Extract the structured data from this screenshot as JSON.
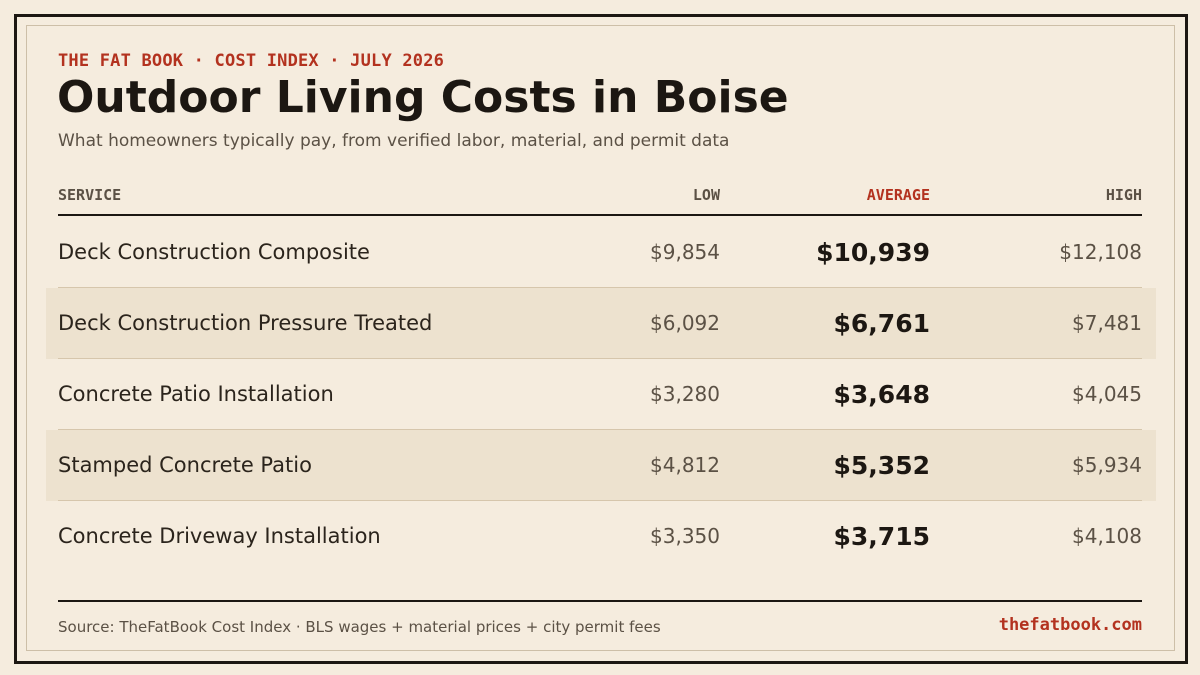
{
  "header": {
    "eyebrow": "THE FAT BOOK · COST INDEX · JULY 2026",
    "title": "Outdoor Living Costs in Boise",
    "subtitle": "What homeowners typically pay, from verified labor, material, and permit data"
  },
  "table": {
    "columns": {
      "service": "SERVICE",
      "low": "LOW",
      "average": "AVERAGE",
      "high": "HIGH"
    },
    "rows": [
      {
        "service": "Deck Construction Composite",
        "low": "$9,854",
        "average": "$10,939",
        "high": "$12,108"
      },
      {
        "service": "Deck Construction Pressure Treated",
        "low": "$6,092",
        "average": "$6,761",
        "high": "$7,481"
      },
      {
        "service": "Concrete Patio Installation",
        "low": "$3,280",
        "average": "$3,648",
        "high": "$4,045"
      },
      {
        "service": "Stamped Concrete Patio",
        "low": "$4,812",
        "average": "$5,352",
        "high": "$5,934"
      },
      {
        "service": "Concrete Driveway Installation",
        "low": "$3,350",
        "average": "$3,715",
        "high": "$4,108"
      }
    ]
  },
  "footer": {
    "source": "Source: TheFatBook Cost Index · BLS wages + material prices + city permit fees",
    "site": "thefatbook.com"
  },
  "colors": {
    "background": "#f5ecde",
    "accent": "#b3321f",
    "ink": "#1c1712",
    "row_shade": "#ede2cf"
  }
}
